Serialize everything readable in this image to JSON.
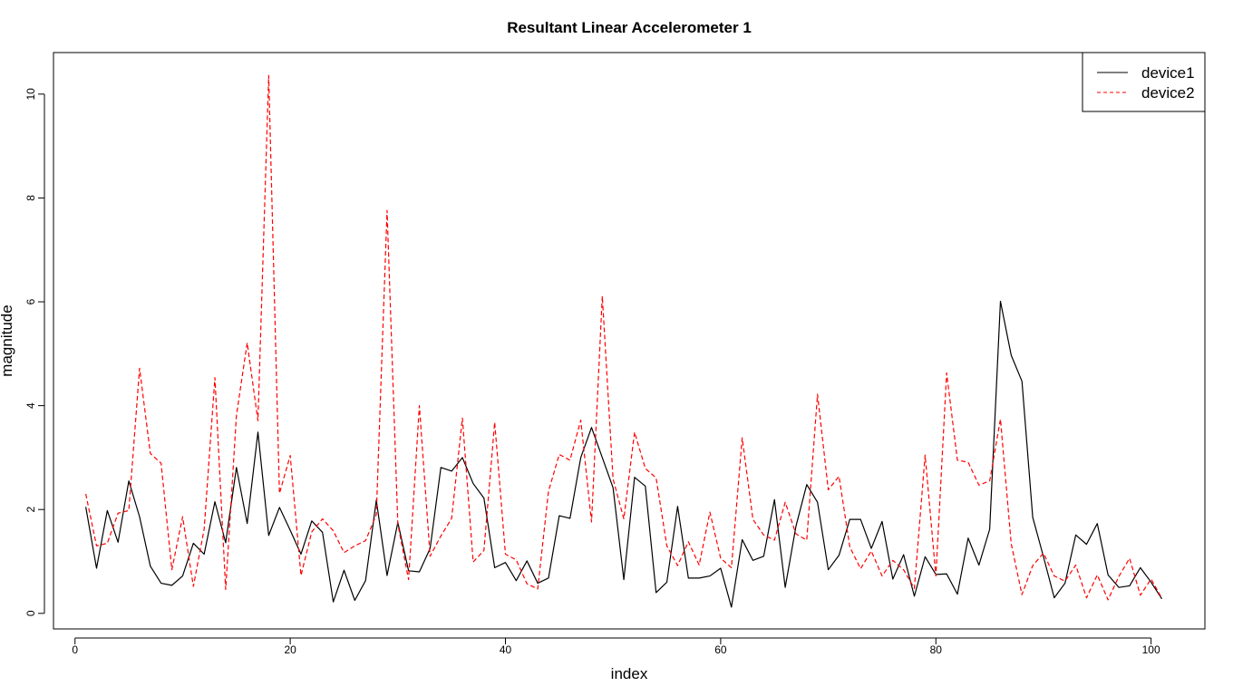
{
  "chart_data": {
    "type": "line",
    "title": "Resultant Linear Accelerometer 1",
    "xlabel": "index",
    "ylabel": "magnitude",
    "xlim": [
      -2,
      105
    ],
    "ylim": [
      -0.3,
      10.8
    ],
    "xticks": [
      0,
      20,
      40,
      60,
      80,
      100
    ],
    "yticks": [
      0,
      2,
      4,
      6,
      8,
      10
    ],
    "grid": false,
    "legend_position": "top-right",
    "series": [
      {
        "name": "device1",
        "color": "#000000",
        "style": "solid",
        "values": [
          2.05,
          0.87,
          1.98,
          1.37,
          2.55,
          1.86,
          0.91,
          0.58,
          0.54,
          0.72,
          1.35,
          1.14,
          2.15,
          1.36,
          2.81,
          1.73,
          3.49,
          1.5,
          2.04,
          1.6,
          1.14,
          1.78,
          1.56,
          0.22,
          0.83,
          0.25,
          0.63,
          2.18,
          0.73,
          1.75,
          0.82,
          0.8,
          1.25,
          2.81,
          2.74,
          3.0,
          2.5,
          2.22,
          0.88,
          0.98,
          0.63,
          1.01,
          0.58,
          0.68,
          1.88,
          1.83,
          3.0,
          3.58,
          3.0,
          2.42,
          0.65,
          2.62,
          2.45,
          0.4,
          0.6,
          2.06,
          0.68,
          0.68,
          0.72,
          0.87,
          0.12,
          1.42,
          1.02,
          1.1,
          2.19,
          0.5,
          1.68,
          2.48,
          2.14,
          0.84,
          1.12,
          1.81,
          1.81,
          1.25,
          1.77,
          0.66,
          1.13,
          0.33,
          1.09,
          0.75,
          0.76,
          0.37,
          1.45,
          0.93,
          1.62,
          6.01,
          4.97,
          4.47,
          1.85,
          1.09,
          0.3,
          0.58,
          1.51,
          1.33,
          1.73,
          0.74,
          0.5,
          0.53,
          0.88,
          0.6,
          0.28
        ]
      },
      {
        "name": "device2",
        "color": "#ff0000",
        "style": "dashed",
        "values": [
          2.3,
          1.3,
          1.35,
          1.93,
          1.98,
          4.72,
          3.08,
          2.89,
          0.84,
          1.86,
          0.52,
          1.62,
          4.54,
          0.46,
          3.81,
          5.21,
          3.71,
          10.36,
          2.31,
          3.04,
          0.73,
          1.57,
          1.82,
          1.59,
          1.17,
          1.3,
          1.4,
          1.9,
          7.76,
          1.72,
          0.65,
          4.0,
          1.1,
          1.49,
          1.83,
          3.76,
          0.99,
          1.21,
          3.68,
          1.14,
          1.03,
          0.57,
          0.47,
          2.35,
          3.06,
          2.95,
          3.72,
          1.76,
          6.11,
          2.59,
          1.82,
          3.49,
          2.79,
          2.61,
          1.3,
          0.92,
          1.38,
          0.93,
          1.95,
          1.06,
          0.88,
          3.38,
          1.81,
          1.51,
          1.41,
          2.14,
          1.53,
          1.41,
          4.22,
          2.38,
          2.64,
          1.28,
          0.86,
          1.2,
          0.72,
          1.02,
          0.84,
          0.48,
          3.05,
          0.72,
          4.63,
          2.95,
          2.91,
          2.47,
          2.55,
          3.74,
          1.34,
          0.36,
          0.92,
          1.16,
          0.72,
          0.62,
          0.93,
          0.3,
          0.74,
          0.26,
          0.71,
          1.06,
          0.35,
          0.66,
          0.29
        ]
      }
    ]
  }
}
